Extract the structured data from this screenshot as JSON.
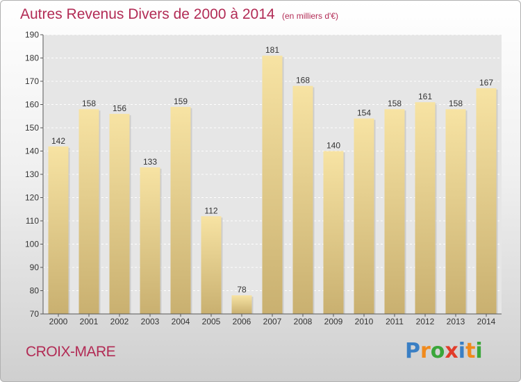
{
  "header": {
    "title": "Autres Revenus Divers de 2000 à 2014",
    "unit": "(en milliers d'€)"
  },
  "footer": {
    "place": "CROIX-MARE",
    "logo_letters": [
      "P",
      "r",
      "o",
      "x",
      "i",
      "t",
      "i"
    ],
    "logo_colors": [
      "#3a7fc4",
      "#f08a1c",
      "#3aa63a",
      "#e23c2a",
      "#3a7fc4",
      "#f08a1c",
      "#3aa63a"
    ]
  },
  "colors": {
    "title": "#b22b55",
    "bar_light": "#f7e3a3",
    "bar_dark": "#c9b070",
    "plot_bg": "#e6e6e6"
  },
  "chart_data": {
    "type": "bar",
    "categories": [
      "2000",
      "2001",
      "2002",
      "2003",
      "2004",
      "2005",
      "2006",
      "2007",
      "2008",
      "2009",
      "2010",
      "2011",
      "2012",
      "2013",
      "2014"
    ],
    "values": [
      142,
      158,
      156,
      133,
      159,
      112,
      78,
      181,
      168,
      140,
      154,
      158,
      161,
      158,
      167
    ],
    "ylim": [
      70,
      190
    ],
    "yticks": [
      70,
      80,
      90,
      100,
      110,
      120,
      130,
      140,
      150,
      160,
      170,
      180,
      190
    ],
    "grid": true,
    "title": "Autres Revenus Divers de 2000 à 2014",
    "xlabel": "",
    "ylabel": ""
  }
}
